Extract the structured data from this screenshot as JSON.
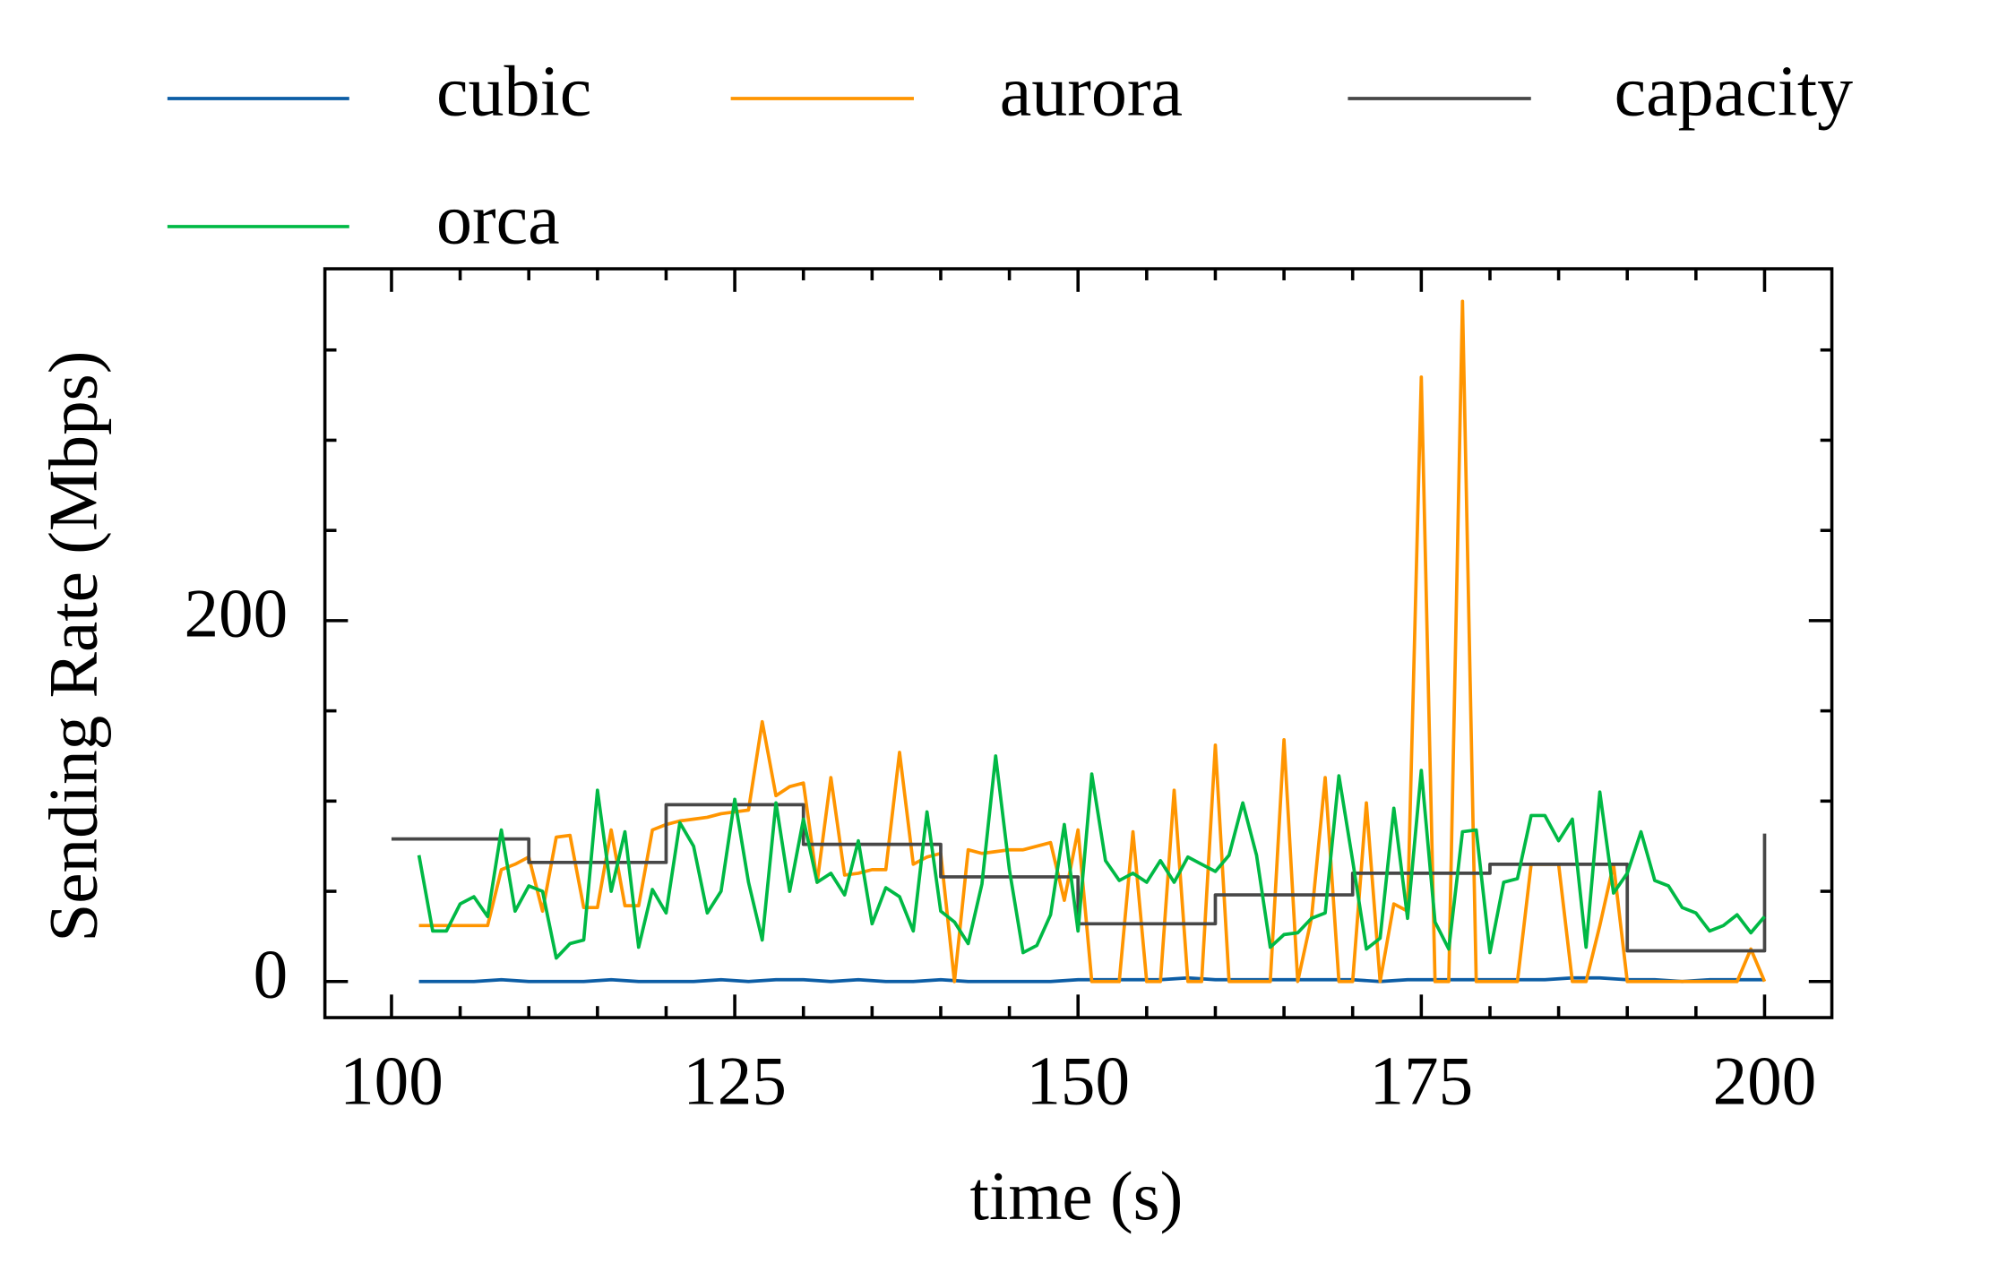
{
  "chart_data": {
    "type": "line",
    "xlabel": "time (s)",
    "ylabel": "Sending Rate (Mbps)",
    "xlim": [
      95.15,
      204.9
    ],
    "ylim": [
      -20,
      395
    ],
    "xticks": [
      100,
      125,
      150,
      175,
      200
    ],
    "yticks": [
      0,
      200
    ],
    "xminorticks": [
      105,
      110,
      115,
      120,
      130,
      135,
      140,
      145,
      155,
      160,
      165,
      170,
      180,
      185,
      190,
      195
    ],
    "yminorticks": [
      50,
      100,
      150,
      250,
      300,
      350
    ],
    "series": [
      {
        "name": "cubic",
        "color": "#0c5da5",
        "x": [
          102,
          104,
          106,
          108,
          110,
          112,
          114,
          116,
          118,
          120,
          122,
          124,
          126,
          128,
          130,
          132,
          134,
          136,
          138,
          140,
          142,
          144,
          146,
          148,
          150,
          152,
          154,
          156,
          158,
          160,
          162,
          164,
          166,
          168,
          170,
          172,
          174,
          176,
          178,
          180,
          182,
          184,
          186,
          188,
          190,
          192,
          194,
          196,
          198,
          200
        ],
        "values": [
          0,
          0,
          0,
          1,
          0,
          0,
          0,
          1,
          0,
          0,
          0,
          1,
          0,
          1,
          1,
          0,
          1,
          0,
          0,
          1,
          0,
          0,
          0,
          0,
          1,
          1,
          1,
          1,
          2,
          1,
          1,
          1,
          1,
          1,
          1,
          0,
          1,
          1,
          1,
          1,
          1,
          1,
          2,
          2,
          1,
          1,
          0,
          1,
          1,
          1
        ]
      },
      {
        "name": "aurora",
        "color": "#ff9500",
        "x": [
          102,
          103,
          104,
          105,
          106,
          107,
          108,
          109,
          110,
          111,
          112,
          113,
          114,
          115,
          116,
          117,
          118,
          119,
          120,
          121,
          122,
          123,
          124,
          125,
          126,
          127,
          128,
          129,
          130,
          131,
          132,
          133,
          134,
          135,
          136,
          137,
          138,
          139,
          140,
          141,
          142,
          143,
          144,
          145,
          146,
          147,
          148,
          149,
          150,
          151,
          152,
          153,
          154,
          155,
          156,
          157,
          158,
          159,
          160,
          161,
          162,
          163,
          164,
          165,
          166,
          167,
          168,
          169,
          170,
          171,
          172,
          173,
          174,
          175,
          176,
          177,
          178,
          179,
          180,
          181,
          182,
          183,
          184,
          185,
          186,
          187,
          188,
          189,
          190,
          191,
          192,
          193,
          194,
          195,
          196,
          197,
          198,
          199,
          200
        ],
        "values": [
          31,
          31,
          31,
          31,
          31,
          31,
          62,
          65,
          69,
          39,
          80,
          81,
          41,
          41,
          84,
          42,
          42,
          84,
          87,
          89,
          90,
          91,
          93,
          94,
          95,
          144,
          103,
          108,
          110,
          55,
          113,
          59,
          60,
          62,
          62,
          127,
          65,
          69,
          71,
          0,
          73,
          71,
          72,
          73,
          73,
          75,
          77,
          45,
          84,
          0,
          0,
          0,
          83,
          0,
          0,
          106,
          0,
          0,
          131,
          0,
          0,
          0,
          0,
          134,
          0,
          35,
          113,
          0,
          0,
          99,
          0,
          43,
          39,
          335,
          0,
          0,
          377,
          0,
          0,
          0,
          0,
          65,
          65,
          65,
          0,
          0,
          31,
          65,
          0,
          0,
          0,
          0,
          0,
          0,
          0,
          0,
          0,
          18,
          0
        ]
      },
      {
        "name": "capacity",
        "color": "#474747",
        "x": [
          100,
          110,
          110,
          120,
          120,
          130,
          130,
          140,
          140,
          150,
          150,
          160,
          160,
          170,
          170,
          180,
          180,
          190,
          190,
          200,
          200
        ],
        "values": [
          79,
          79,
          66,
          66,
          98,
          98,
          76,
          76,
          58,
          58,
          32,
          32,
          48,
          48,
          60,
          60,
          65,
          65,
          17,
          17,
          82
        ]
      },
      {
        "name": "orca",
        "color": "#00b945",
        "x": [
          102,
          103,
          104,
          105,
          106,
          107,
          108,
          109,
          110,
          111,
          112,
          113,
          114,
          115,
          116,
          117,
          118,
          119,
          120,
          121,
          122,
          123,
          124,
          125,
          126,
          127,
          128,
          129,
          130,
          131,
          132,
          133,
          134,
          135,
          136,
          137,
          138,
          139,
          140,
          141,
          142,
          143,
          144,
          145,
          146,
          147,
          148,
          149,
          150,
          151,
          152,
          153,
          154,
          155,
          156,
          157,
          158,
          159,
          160,
          161,
          162,
          163,
          164,
          165,
          166,
          167,
          168,
          169,
          170,
          171,
          172,
          173,
          174,
          175,
          176,
          177,
          178,
          179,
          180,
          181,
          182,
          183,
          184,
          185,
          186,
          187,
          188,
          189,
          190,
          191,
          192,
          193,
          194,
          195,
          196,
          197,
          198,
          199,
          200
        ],
        "values": [
          70,
          28,
          28,
          43,
          47,
          36,
          84,
          39,
          53,
          50,
          13,
          21,
          23,
          106,
          50,
          83,
          19,
          51,
          38,
          88,
          75,
          38,
          50,
          101,
          55,
          23,
          99,
          50,
          90,
          55,
          60,
          48,
          78,
          32,
          52,
          47,
          28,
          94,
          39,
          33,
          21,
          54,
          125,
          62,
          16,
          20,
          37,
          87,
          28,
          115,
          67,
          56,
          60,
          55,
          67,
          55,
          69,
          65,
          61,
          70,
          99,
          70,
          19,
          26,
          27,
          35,
          38,
          114,
          67,
          18,
          24,
          96,
          35,
          117,
          33,
          18,
          83,
          84,
          16,
          55,
          57,
          92,
          92,
          78,
          90,
          19,
          105,
          49,
          60,
          83,
          56,
          53,
          41,
          38,
          28,
          31,
          37,
          27,
          36
        ]
      }
    ]
  }
}
